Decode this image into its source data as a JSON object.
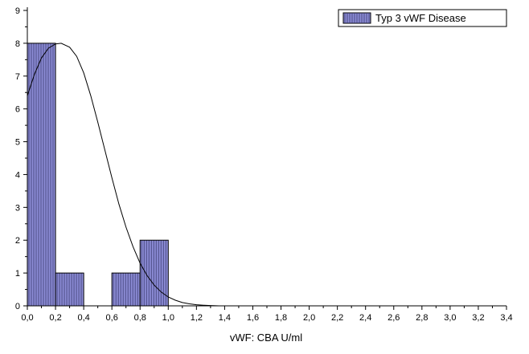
{
  "chart_data": {
    "type": "bar",
    "histogram": true,
    "xlabel": "vWF: CBA U/ml",
    "ylabel": "",
    "xlim": [
      0,
      3.4
    ],
    "ylim": [
      0,
      9
    ],
    "x_ticks": [
      "0,0",
      "0,2",
      "0,4",
      "0,6",
      "0,8",
      "1,0",
      "1,2",
      "1,4",
      "1,6",
      "1,8",
      "2,0",
      "2,2",
      "2,4",
      "2,6",
      "2,8",
      "3,0",
      "3,2",
      "3,4"
    ],
    "y_ticks": [
      "0",
      "1",
      "2",
      "3",
      "4",
      "5",
      "6",
      "7",
      "8",
      "9"
    ],
    "bins": [
      {
        "from": 0.0,
        "to": 0.2,
        "count": 8
      },
      {
        "from": 0.2,
        "to": 0.4,
        "count": 1
      },
      {
        "from": 0.4,
        "to": 0.6,
        "count": 0
      },
      {
        "from": 0.6,
        "to": 0.8,
        "count": 1
      },
      {
        "from": 0.8,
        "to": 1.0,
        "count": 2
      }
    ],
    "series": [
      {
        "name": "Typ 3 vWF Disease",
        "color": "#8c8cd6"
      }
    ],
    "fit_curve": {
      "type": "normal",
      "peak_x": 0.24,
      "peak_y": 8.0,
      "x_range": [
        0,
        1.36
      ],
      "points": [
        [
          0.0,
          6.4
        ],
        [
          0.05,
          7.05
        ],
        [
          0.1,
          7.55
        ],
        [
          0.15,
          7.85
        ],
        [
          0.2,
          7.98
        ],
        [
          0.24,
          8.0
        ],
        [
          0.3,
          7.88
        ],
        [
          0.35,
          7.6
        ],
        [
          0.4,
          7.1
        ],
        [
          0.45,
          6.4
        ],
        [
          0.5,
          5.6
        ],
        [
          0.55,
          4.75
        ],
        [
          0.6,
          3.9
        ],
        [
          0.65,
          3.1
        ],
        [
          0.7,
          2.4
        ],
        [
          0.75,
          1.8
        ],
        [
          0.8,
          1.3
        ],
        [
          0.85,
          0.92
        ],
        [
          0.9,
          0.63
        ],
        [
          0.95,
          0.42
        ],
        [
          1.0,
          0.27
        ],
        [
          1.05,
          0.17
        ],
        [
          1.1,
          0.1
        ],
        [
          1.15,
          0.06
        ],
        [
          1.2,
          0.035
        ],
        [
          1.25,
          0.02
        ],
        [
          1.3,
          0.01
        ],
        [
          1.36,
          0.0
        ]
      ]
    },
    "legend": "top-right",
    "grid": false
  }
}
